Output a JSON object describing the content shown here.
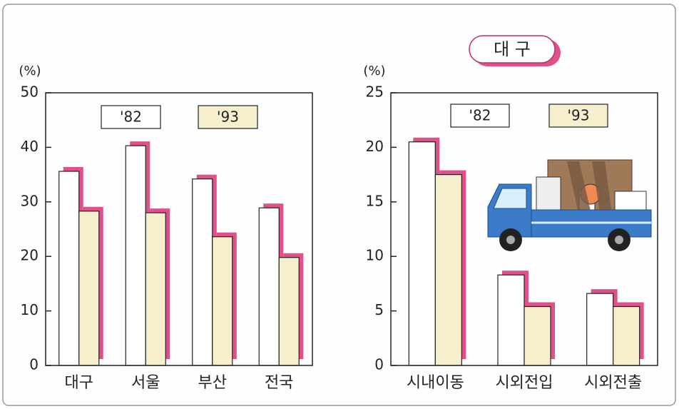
{
  "chart_data": [
    {
      "type": "bar",
      "y_label": "(%)",
      "categories": [
        "대구",
        "서울",
        "부산",
        "전국"
      ],
      "series": [
        {
          "name": "'82",
          "color": "#ffffff",
          "values": [
            35.6,
            40.3,
            34.2,
            28.9
          ]
        },
        {
          "name": "'93",
          "color": "#f6efcd",
          "values": [
            28.3,
            28.0,
            23.6,
            19.8
          ]
        }
      ],
      "shadow_color": "#e0508a",
      "ylim": [
        0,
        50
      ],
      "yticks": [
        0,
        10,
        20,
        30,
        40,
        50
      ]
    },
    {
      "type": "bar",
      "title": "대 구",
      "y_label": "(%)",
      "categories": [
        "시내이동",
        "시외전입",
        "시외전출"
      ],
      "series": [
        {
          "name": "'82",
          "color": "#ffffff",
          "values": [
            20.5,
            8.3,
            6.6
          ]
        },
        {
          "name": "'93",
          "color": "#f6efcd",
          "values": [
            17.5,
            5.4,
            5.4
          ]
        }
      ],
      "shadow_color": "#e0508a",
      "ylim": [
        0,
        25
      ],
      "yticks": [
        0,
        5,
        10,
        15,
        20,
        25
      ]
    }
  ]
}
